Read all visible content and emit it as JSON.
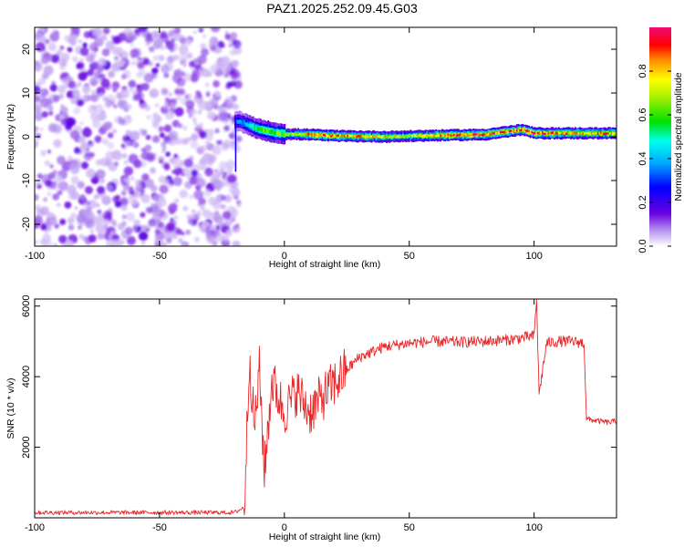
{
  "title": "PAZ1.2025.252.09.45.G03",
  "chart_data": [
    {
      "type": "heatmap",
      "xlabel": "Height of straight line (km)",
      "ylabel": "Frequency (Hz)",
      "xlim": [
        -100,
        133
      ],
      "ylim": [
        -25,
        25
      ],
      "xticks": [
        -100,
        -50,
        0,
        50,
        100
      ],
      "yticks": [
        20,
        10,
        0,
        -10,
        -20
      ],
      "colorbar": {
        "label": "Normalized spectral amplitude",
        "range": [
          0,
          1
        ],
        "ticks": [
          0.0,
          0.2,
          0.4,
          0.6,
          0.8
        ]
      },
      "features": {
        "noise_region_x": [
          -100,
          -20
        ],
        "tone_start_x": -20,
        "tone_frequency_hz": [
          [
            -18,
            3.5
          ],
          [
            -12,
            2.0
          ],
          [
            -5,
            1.0
          ],
          [
            0,
            0.6
          ],
          [
            10,
            0.5
          ],
          [
            20,
            0.2
          ],
          [
            40,
            0.0
          ],
          [
            60,
            0.3
          ],
          [
            80,
            0.5
          ],
          [
            95,
            1.6
          ],
          [
            100,
            0.8
          ],
          [
            115,
            0.8
          ],
          [
            133,
            0.8
          ]
        ],
        "tone_peak_amplitude": [
          [
            -18,
            0.35
          ],
          [
            -10,
            0.6
          ],
          [
            0,
            0.6
          ],
          [
            10,
            0.85
          ],
          [
            20,
            0.85
          ],
          [
            50,
            0.7
          ],
          [
            65,
            0.9
          ],
          [
            80,
            0.9
          ],
          [
            95,
            0.85
          ],
          [
            100,
            0.9
          ],
          [
            120,
            0.8
          ],
          [
            133,
            0.85
          ]
        ]
      }
    },
    {
      "type": "line",
      "xlabel": "Height of straight line (km)",
      "ylabel": "SNR (10 * v/v)",
      "xlim": [
        -100,
        133
      ],
      "ylim": [
        0,
        6200
      ],
      "xticks": [
        -100,
        -50,
        0,
        50,
        100
      ],
      "yticks": [
        2000,
        4000,
        6000
      ],
      "color": "#e8282a",
      "x": [
        -100,
        -80,
        -60,
        -40,
        -20,
        -16,
        -14,
        -12,
        -10,
        -8,
        -5,
        0,
        5,
        10,
        15,
        20,
        25,
        30,
        40,
        50,
        60,
        70,
        80,
        90,
        95,
        100,
        101,
        102,
        105,
        110,
        115,
        120,
        121,
        125,
        130,
        133
      ],
      "y": [
        150,
        150,
        150,
        150,
        150,
        300,
        4600,
        2500,
        4200,
        1300,
        3900,
        3000,
        3600,
        3000,
        3400,
        3800,
        4200,
        4550,
        4850,
        4950,
        5000,
        4980,
        5000,
        5050,
        5100,
        5150,
        6200,
        3500,
        4950,
        5000,
        5000,
        4950,
        2800,
        2750,
        2700,
        2750
      ]
    }
  ]
}
